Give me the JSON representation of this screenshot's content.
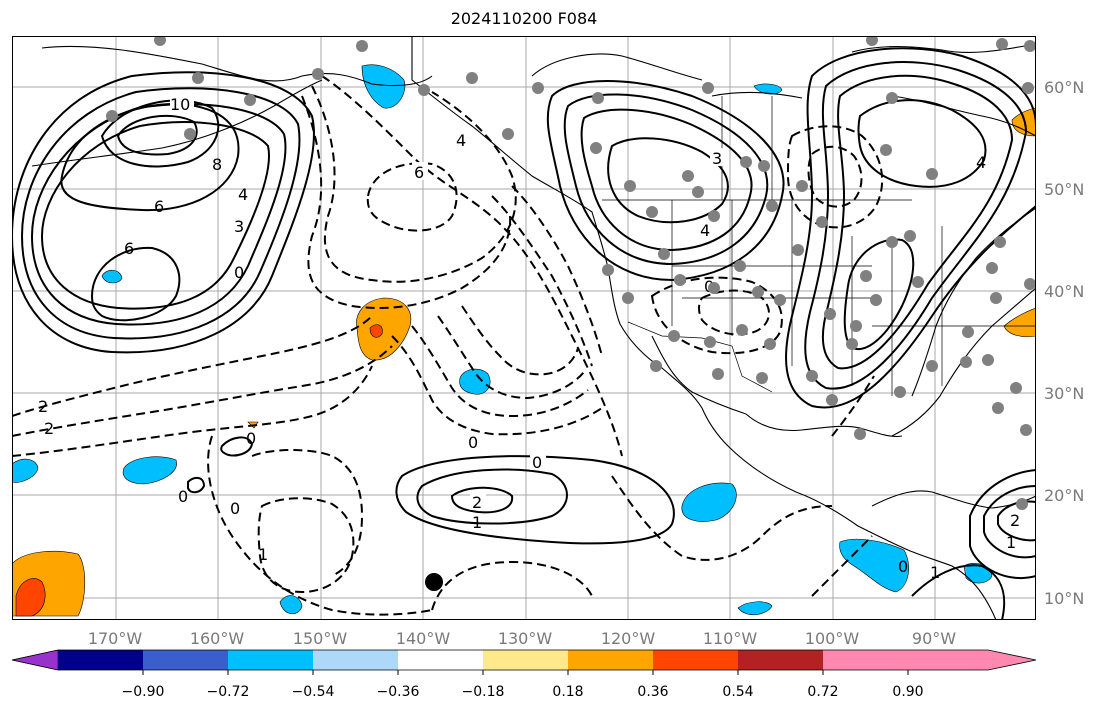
{
  "title": "2024110200 F084",
  "lon_labels": [
    "170°W",
    "160°W",
    "150°W",
    "140°W",
    "130°W",
    "120°W",
    "110°W",
    "100°W",
    "90°W"
  ],
  "lat_labels": [
    "60°N",
    "50°N",
    "40°N",
    "30°N",
    "20°N",
    "10°N"
  ],
  "colorbar": {
    "colors": [
      "#9932cc",
      "#00008b",
      "#3a5fcd",
      "#00bfff",
      "#add8f8",
      "#ffffff",
      "#ffe98a",
      "#ffa500",
      "#ff4500",
      "#b22222",
      "#ff88b0"
    ],
    "tick_labels": [
      "−0.90",
      "−0.72",
      "−0.54",
      "−0.36",
      "−0.18",
      "0.18",
      "0.36",
      "0.54",
      "0.72",
      "0.90"
    ]
  },
  "contour_labels": {
    "l10": "10",
    "l8": "8",
    "l6a": "6",
    "l6b": "6",
    "l4a": "4",
    "l3a": "3",
    "l0a": "0",
    "l6c": "6",
    "l4b": "4",
    "lm2a": "2",
    "lm2b": "2",
    "l0b": "0",
    "l0c": "0",
    "l0d": "0",
    "l2": "2",
    "l1": "1",
    "l0e": "0",
    "l3b": "3",
    "l4c": "4",
    "l1b": "1",
    "l0f": "0",
    "l0g": "0",
    "l4d": "4",
    "l2b": "2",
    "l1c": "1",
    "l0h": "0",
    "l1d": "1"
  },
  "marker_label": "storm-center"
}
